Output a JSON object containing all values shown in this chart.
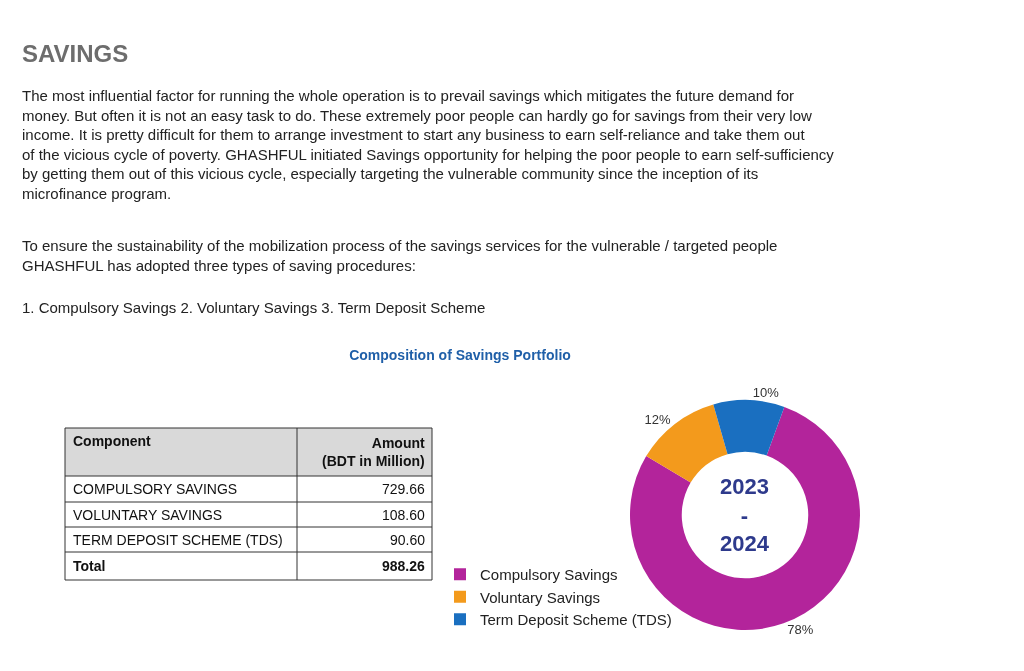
{
  "chart_data": {
    "type": "donut",
    "title": "Composition of Savings Portfolio",
    "categories": [
      "Compulsory Savings",
      "Voluntary Savings",
      "Term Deposit Scheme (TDS)"
    ],
    "values": [
      78,
      12,
      10
    ],
    "colors": [
      "#b3249b",
      "#f39a1c",
      "#1a6fc0"
    ],
    "value_labels": [
      "78%",
      "12%",
      "10%"
    ],
    "legend": "left",
    "annotations": [
      "SAVINGS",
      "The most influential factor for running the whole operation is to prevail savings which mitigates the future demand for money. But often it is not an easy task to do. These extremely poor people can hardly go for savings from their very low income. It is pretty difficult for them to arrange investment to start any business to earn self-reliance and take them out of the vicious cycle of poverty. GHASHFUL initiated Savings opportunity for helping the poor people to earn self-sufficiency by getting them out of this vicious cycle, especially targeting the vulnerable community since the inception of its microfinance program.",
      "To ensure the sustainability of the mobilization process of the savings services for the vulnerable / targeted people GHASHFUL has adopted three types of saving procedures:",
      "1. Compulsory Savings 2. Voluntary Savings 3. Term Deposit Scheme",
      "Component",
      "Amount (BDT in Million)",
      "COMPULSORY SAVINGS",
      "729.66",
      "VOLUNTARY SAVINGS",
      "108.60",
      "TERM DEPOSIT SCHEME (TDS)",
      "90.60",
      "Total",
      "988.26",
      "2023 - 2024"
    ]
  }
}
